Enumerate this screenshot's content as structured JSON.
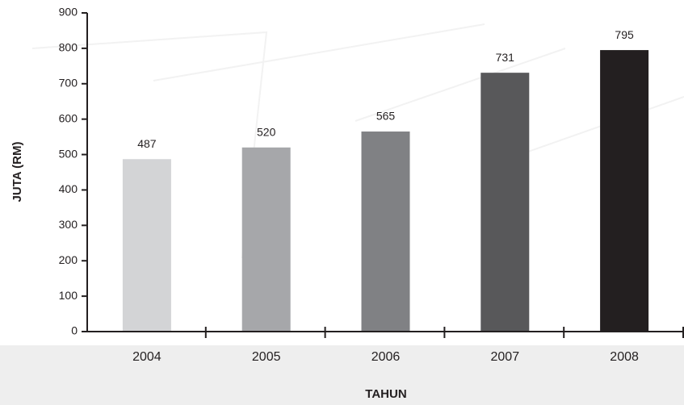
{
  "chart_data": {
    "type": "bar",
    "categories": [
      "2004",
      "2005",
      "2006",
      "2007",
      "2008"
    ],
    "values": [
      487,
      520,
      565,
      731,
      795
    ],
    "colors": [
      "#d3d4d6",
      "#a6a7aa",
      "#808184",
      "#58585a",
      "#231f20"
    ],
    "xlabel": "TAHUN",
    "ylabel": "JUTA (RM)",
    "ylim": [
      0,
      900
    ],
    "yticks": [
      0,
      100,
      200,
      300,
      400,
      500,
      600,
      700,
      800,
      900
    ],
    "grid": false,
    "data_labels": true
  }
}
